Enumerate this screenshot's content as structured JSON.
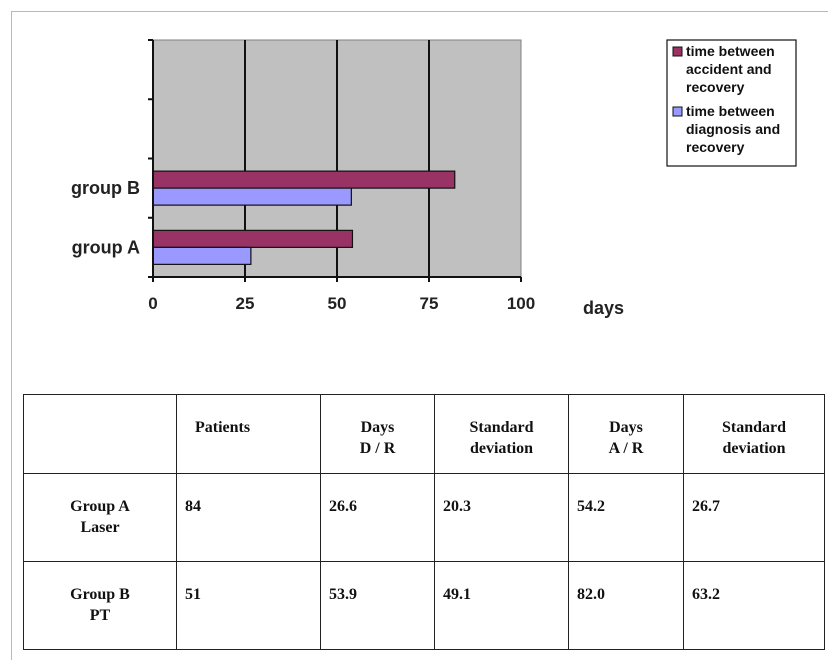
{
  "chart_data": {
    "type": "bar",
    "orientation": "horizontal",
    "categories": [
      "group A",
      "group B"
    ],
    "series": [
      {
        "name": "time between accident and recovery",
        "values": [
          54.2,
          82.0
        ],
        "color": "#993366"
      },
      {
        "name": "time between diagnosis and recovery",
        "values": [
          26.6,
          53.9
        ],
        "color": "#9999ff"
      }
    ],
    "x_ticks": [
      "0",
      "25",
      "50",
      "75",
      "100"
    ],
    "xlim": [
      0,
      100
    ],
    "xlabel": "days",
    "plot_background": "#c0c0c0",
    "grid": true,
    "legend_position": "top-right"
  },
  "table": {
    "headers": [
      {
        "lines": [
          ""
        ]
      },
      {
        "lines": [
          "Patients"
        ]
      },
      {
        "lines": [
          "Days",
          "D / R"
        ]
      },
      {
        "lines": [
          "Standard",
          "deviation"
        ]
      },
      {
        "lines": [
          "Days",
          "A / R"
        ]
      },
      {
        "lines": [
          "Standard",
          "deviation"
        ]
      }
    ],
    "rows": [
      {
        "name": [
          "Group A",
          "Laser"
        ],
        "values": [
          "84",
          "26.6",
          "20.3",
          "54.2",
          "26.7"
        ]
      },
      {
        "name": [
          "Group B",
          "PT"
        ],
        "values": [
          "51",
          "53.9",
          "49.1",
          "82.0",
          "63.2"
        ]
      }
    ]
  }
}
